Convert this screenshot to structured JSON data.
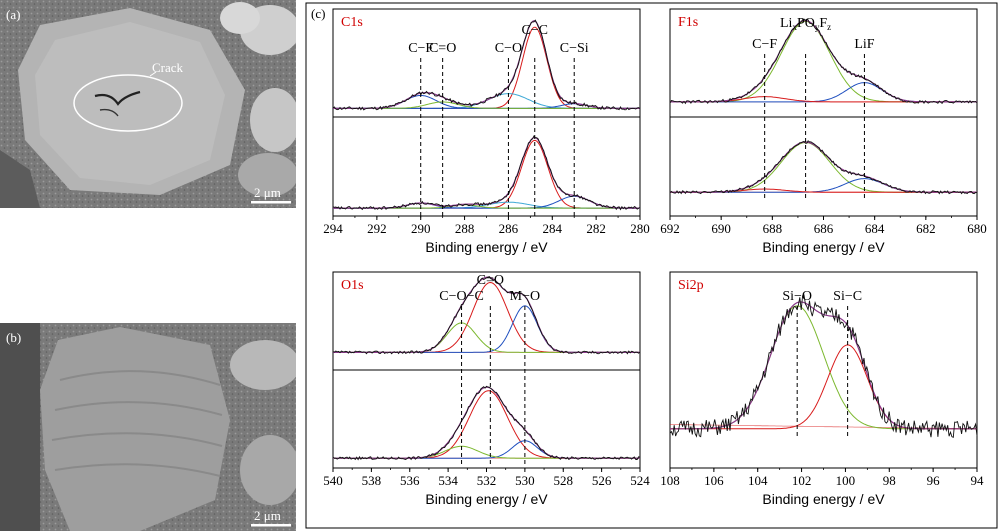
{
  "figure": {
    "panel_labels": {
      "a": "(a)",
      "b": "(b)",
      "c": "(c)"
    },
    "sem_a": {
      "crack_label": "Crack",
      "scale_bar": "2 μm"
    },
    "sem_b": {
      "scale_bar": "2 μm"
    }
  },
  "colors": {
    "envelope": "#8b3a8b",
    "data": "#111111",
    "red_fit": "#d81b1b",
    "blue_fit": "#1f4fbf",
    "green_fit": "#7cb82f",
    "cyan_fit": "#3fa9d6",
    "frame": "#000000",
    "title": "#d00000"
  },
  "chart_data": [
    {
      "type": "line",
      "title": "C1s",
      "xlabel": "Binding energy / eV",
      "xlim": [
        294,
        280
      ],
      "xticks": [
        294,
        292,
        290,
        288,
        286,
        284,
        282,
        280
      ],
      "x_reversed": true,
      "stacked_spectra": 2,
      "peak_labels": [
        {
          "text": "C−F",
          "x": 290.0
        },
        {
          "text": "C=O",
          "x": 289.0
        },
        {
          "text": "C−O",
          "x": 286.0
        },
        {
          "text": "C−C",
          "x": 284.8
        },
        {
          "text": "C−Si",
          "x": 283.0
        }
      ],
      "series": [
        {
          "component": "C−C",
          "color": "red",
          "top": {
            "center": 284.8,
            "height": 0.88,
            "width": 0.55
          },
          "bottom": {
            "center": 284.8,
            "height": 0.8,
            "width": 0.6
          }
        },
        {
          "component": "C−O",
          "color": "cyan",
          "top": {
            "center": 286.0,
            "height": 0.16,
            "width": 0.9
          },
          "bottom": {
            "center": 286.0,
            "height": 0.07,
            "width": 0.9
          }
        },
        {
          "component": "C−Si",
          "color": "blue",
          "top": {
            "center": 283.0,
            "height": 0.05,
            "width": 0.6
          },
          "bottom": {
            "center": 283.0,
            "height": 0.14,
            "width": 0.7
          }
        },
        {
          "component": "C−F",
          "color": "blue",
          "top": {
            "center": 290.0,
            "height": 0.14,
            "width": 0.7
          },
          "bottom": {
            "center": 290.0,
            "height": 0.06,
            "width": 0.6
          }
        },
        {
          "component": "C=O",
          "color": "green",
          "top": {
            "center": 289.0,
            "height": 0.07,
            "width": 0.7
          },
          "bottom": {
            "center": 288.0,
            "height": 0.04,
            "width": 0.6
          }
        }
      ]
    },
    {
      "type": "line",
      "title": "F1s",
      "xlabel": "Binding energy / eV",
      "xlim": [
        692,
        680
      ],
      "xticks": [
        692,
        690,
        688,
        686,
        684,
        682,
        680
      ],
      "x_reversed": true,
      "stacked_spectra": 2,
      "peak_labels": [
        {
          "text": "C−F",
          "x": 688.3
        },
        {
          "text": "LixPOyFz",
          "x": 686.7
        },
        {
          "text": "LiF",
          "x": 684.4
        }
      ],
      "series": [
        {
          "component": "LixPOyFz",
          "color": "green",
          "top": {
            "center": 686.7,
            "height": 0.92,
            "width": 0.95
          },
          "bottom": {
            "center": 686.7,
            "height": 0.62,
            "width": 0.95
          }
        },
        {
          "component": "LiF",
          "color": "blue",
          "top": {
            "center": 684.4,
            "height": 0.22,
            "width": 0.7
          },
          "bottom": {
            "center": 684.4,
            "height": 0.17,
            "width": 0.75
          }
        },
        {
          "component": "C−F",
          "color": "red",
          "top": {
            "center": 688.3,
            "height": 0.06,
            "width": 0.8
          },
          "bottom": {
            "center": 688.3,
            "height": 0.04,
            "width": 0.8
          }
        }
      ]
    },
    {
      "type": "line",
      "title": "O1s",
      "xlabel": "Binding energy / eV",
      "xlim": [
        540,
        524
      ],
      "xticks": [
        540,
        538,
        536,
        534,
        532,
        530,
        528,
        526,
        524
      ],
      "x_reversed": true,
      "stacked_spectra": 2,
      "peak_labels": [
        {
          "text": "C−O−C",
          "x": 533.3
        },
        {
          "text": "C=O",
          "x": 531.8
        },
        {
          "text": "M−O",
          "x": 530.0
        }
      ],
      "series": [
        {
          "component": "C=O",
          "color": "red",
          "top": {
            "center": 531.8,
            "height": 0.9,
            "width": 0.9
          },
          "bottom": {
            "center": 531.9,
            "height": 0.85,
            "width": 1.0
          }
        },
        {
          "component": "M−O",
          "color": "blue",
          "top": {
            "center": 530.0,
            "height": 0.6,
            "width": 0.65
          },
          "bottom": {
            "center": 530.0,
            "height": 0.22,
            "width": 0.65
          }
        },
        {
          "component": "C−O−C",
          "color": "green",
          "top": {
            "center": 533.3,
            "height": 0.38,
            "width": 0.75
          },
          "bottom": {
            "center": 533.3,
            "height": 0.15,
            "width": 0.85
          }
        }
      ]
    },
    {
      "type": "line",
      "title": "Si2p",
      "xlabel": "Binding energy / eV",
      "xlim": [
        108,
        94
      ],
      "xticks": [
        108,
        106,
        104,
        102,
        100,
        98,
        96,
        94
      ],
      "x_reversed": true,
      "stacked_spectra": 1,
      "peak_labels": [
        {
          "text": "Si−O",
          "x": 102.2
        },
        {
          "text": "Si−C",
          "x": 99.9
        }
      ],
      "series": [
        {
          "component": "Si−O",
          "color": "green",
          "top": {
            "center": 102.2,
            "height": 0.85,
            "width": 1.2
          }
        },
        {
          "component": "Si−C",
          "color": "red",
          "top": {
            "center": 99.9,
            "height": 0.58,
            "width": 0.9
          }
        }
      ]
    }
  ]
}
